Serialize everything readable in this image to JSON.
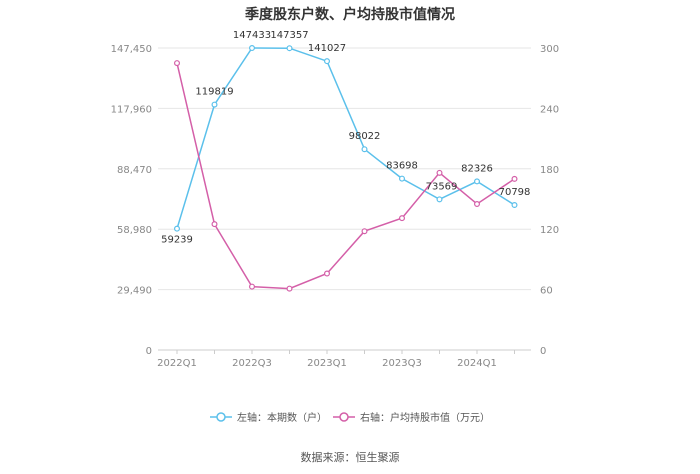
{
  "chart_data": {
    "type": "line",
    "title": "季度股东户数、户均持股市值情况",
    "categories": [
      "2022Q1",
      "2022Q2",
      "2022Q3",
      "2022Q4",
      "2023Q1",
      "2023Q2",
      "2023Q3",
      "2023Q4",
      "2024Q1",
      "2024Q2"
    ],
    "x_tick_labels": [
      "2022Q1",
      "2022Q3",
      "2023Q1",
      "2023Q3",
      "2024Q1"
    ],
    "left_axis": {
      "ticks": [
        "147,450",
        "117,960",
        "88,470",
        "58,980",
        "29,490",
        "0"
      ],
      "min": 0,
      "max": 147450
    },
    "right_axis": {
      "ticks": [
        "300",
        "240",
        "180",
        "120",
        "60",
        "0"
      ],
      "min": 0,
      "max": 300
    },
    "series": [
      {
        "name": "左轴：本期数（户）",
        "axis": "left",
        "color": "#5bc0eb",
        "values": [
          59239,
          119819,
          147433,
          147357,
          141027,
          98022,
          83698,
          73569,
          82326,
          70798
        ],
        "labels": [
          "59239",
          "119819",
          "147433",
          "147357",
          "141027",
          "98022",
          "83698",
          "73569",
          "82326",
          "70798"
        ]
      },
      {
        "name": "右轴：户均持股市值（万元）",
        "axis": "right",
        "color": "#d45fa8",
        "values": [
          285,
          125,
          63,
          61,
          76,
          118,
          131,
          176,
          145,
          170
        ]
      }
    ],
    "grid": true,
    "legend_position": "bottom"
  },
  "source": "数据来源：恒生聚源"
}
